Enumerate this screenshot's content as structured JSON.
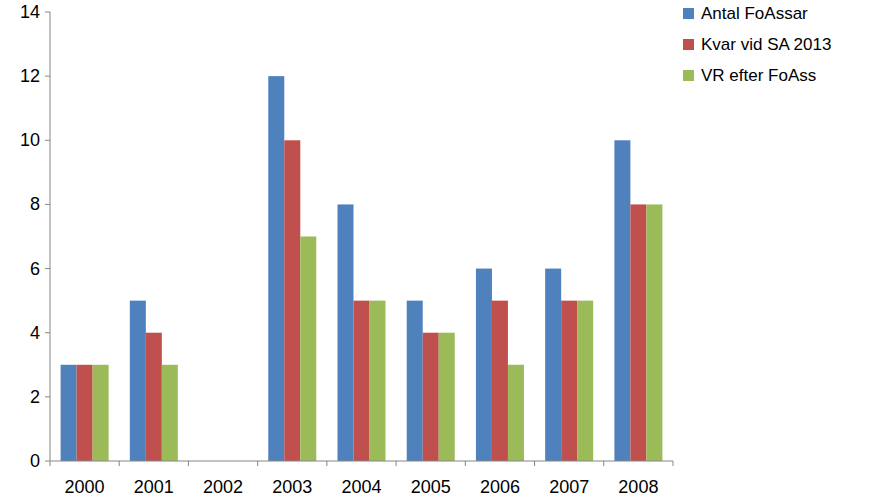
{
  "chart_data": {
    "type": "bar",
    "categories": [
      "2000",
      "2001",
      "2002",
      "2003",
      "2004",
      "2005",
      "2006",
      "2007",
      "2008"
    ],
    "series": [
      {
        "name": "Antal FoAssar",
        "color": "#4f81bd",
        "values": [
          3,
          5,
          0,
          12,
          8,
          5,
          6,
          6,
          10
        ]
      },
      {
        "name": "Kvar vid SA 2013",
        "color": "#c0504d",
        "values": [
          3,
          4,
          0,
          10,
          5,
          4,
          5,
          5,
          8
        ]
      },
      {
        "name": "VR efter FoAss",
        "color": "#9bbb59",
        "values": [
          3,
          3,
          0,
          7,
          5,
          4,
          3,
          5,
          8
        ]
      }
    ],
    "ylim": [
      0,
      14
    ],
    "yticks": [
      0,
      2,
      4,
      6,
      8,
      10,
      12,
      14
    ],
    "grid": false,
    "legend": "right"
  }
}
